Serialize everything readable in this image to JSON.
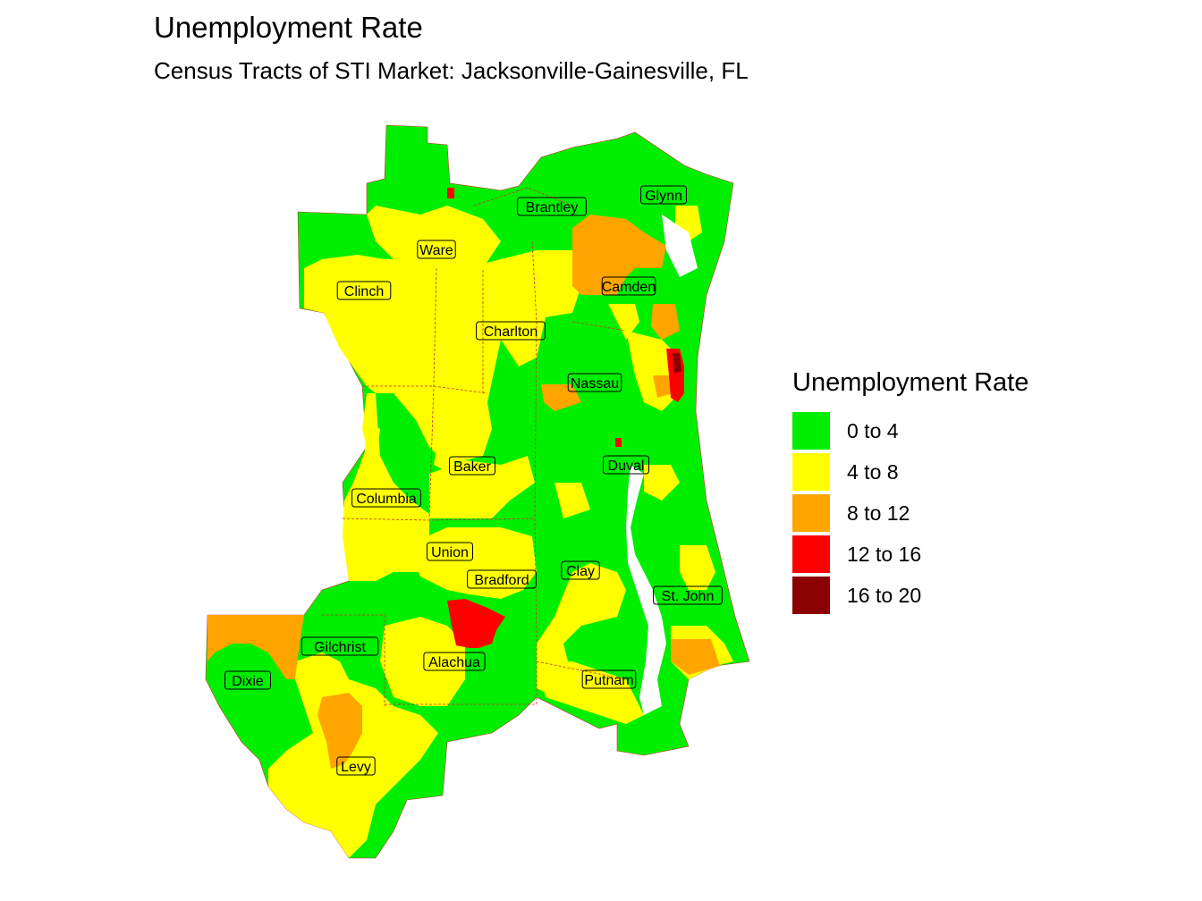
{
  "title": "Unemployment Rate",
  "subtitle": "Census Tracts of STI Market: Jacksonville-Gainesville, FL",
  "legend": {
    "title": "Unemployment Rate",
    "items": [
      {
        "label": "0 to 4",
        "color": "#00ee00"
      },
      {
        "label": "4 to 8",
        "color": "#ffff00"
      },
      {
        "label": "8 to 12",
        "color": "#ffa500"
      },
      {
        "label": "12 to 16",
        "color": "#ff0000"
      },
      {
        "label": "16 to 20",
        "color": "#8b0000"
      }
    ]
  },
  "counties": [
    "Glynn",
    "Brantley",
    "Ware",
    "Clinch",
    "Camden",
    "Charlton",
    "Nassau",
    "Baker",
    "Duval",
    "Columbia",
    "Union",
    "Clay",
    "Bradford",
    "St. John",
    "Gilchrist",
    "Alachua",
    "Dixie",
    "Putnam",
    "Levy"
  ]
}
